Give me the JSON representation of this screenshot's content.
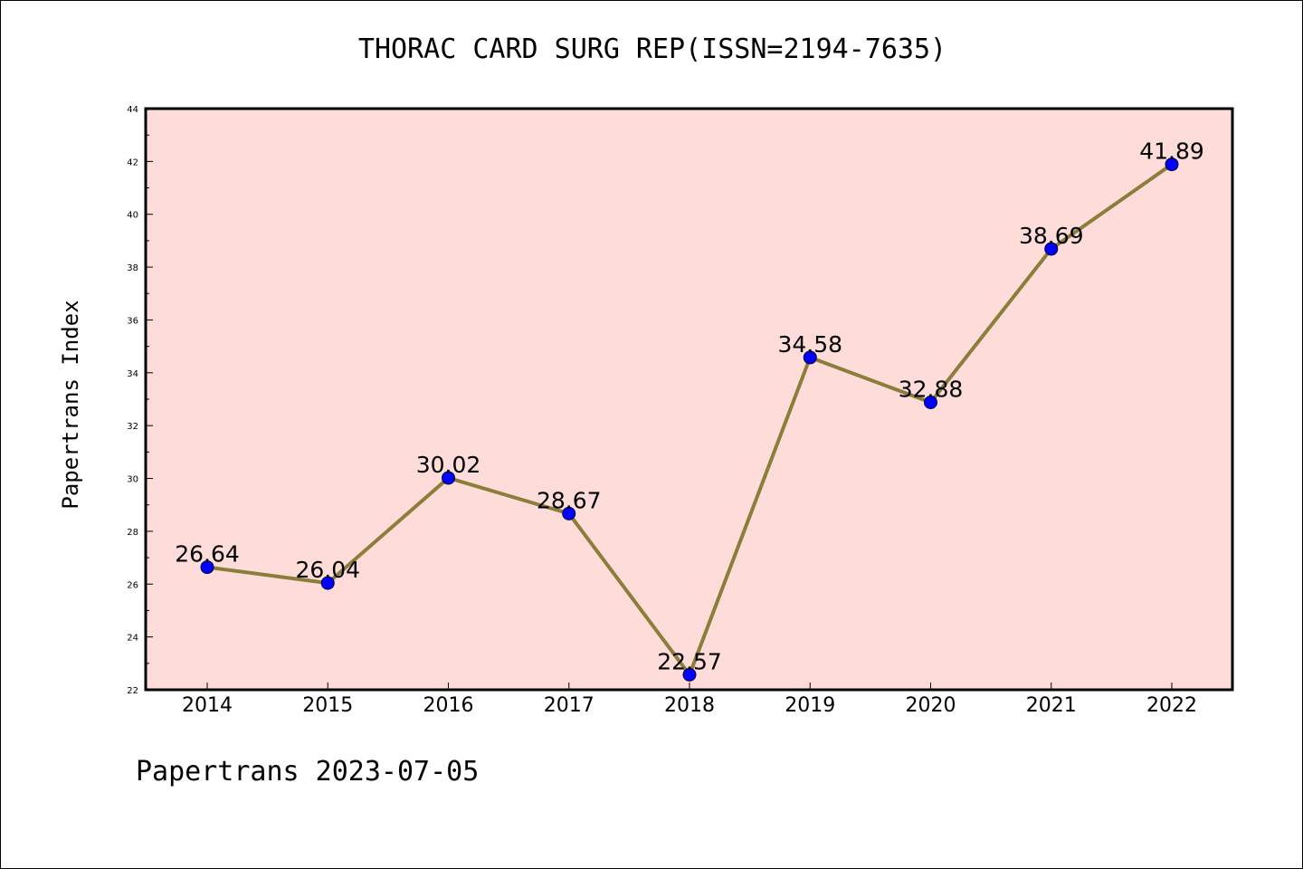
{
  "chart_data": {
    "type": "line",
    "title": "THORAC CARD SURG REP(ISSN=2194-7635)",
    "xlabel": "",
    "ylabel": "Papertrans Index",
    "categories": [
      "2014",
      "2015",
      "2016",
      "2017",
      "2018",
      "2019",
      "2020",
      "2021",
      "2022"
    ],
    "series": [
      {
        "values": [
          26.64,
          26.04,
          30.02,
          28.67,
          22.57,
          34.58,
          32.88,
          38.69,
          41.89
        ],
        "labels": [
          "26.64",
          "26.04",
          "30.02",
          "28.67",
          "22.57",
          "34.58",
          "32.88",
          "38.69",
          "41.89"
        ],
        "line_color": "#8b7d3a",
        "marker_color": "#0000ff"
      }
    ],
    "ylim": [
      22,
      44
    ],
    "yticks": [
      "22",
      "24",
      "26",
      "28",
      "30",
      "32",
      "34",
      "36",
      "38",
      "40",
      "42",
      "44"
    ],
    "background_color": "#fddcd9",
    "grid": false,
    "legend": "none"
  },
  "footer": "Papertrans 2023-07-05"
}
